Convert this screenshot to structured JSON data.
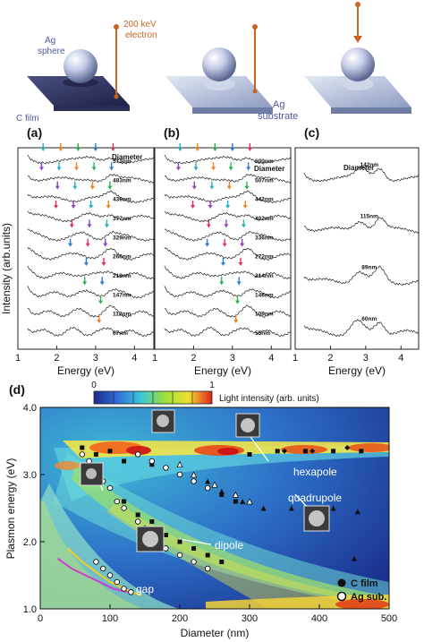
{
  "illustration": {
    "sphere_label": "Ag\nsphere",
    "sphere_label_1": "Ag",
    "sphere_label_2": "sphere",
    "electron_label_1": "200 keV",
    "electron_label_2": "electron",
    "film_label": "C film",
    "substrate_label_1": "Ag",
    "substrate_label_2": "substrate",
    "colors": {
      "electron": "#c8641e",
      "sphere": "#b8c4e8",
      "film": "#3a3f6e",
      "substrate": "#9aa8cc",
      "label": "#4a5aa0"
    }
  },
  "spectra": {
    "panel_labels": [
      "(a)",
      "(b)",
      "(c)"
    ],
    "ylabel": "Intensity (arb.units)",
    "xlabel": "Energy (eV)",
    "xticks": [
      "1",
      "2",
      "3",
      "4"
    ],
    "legend_title": "Diameter",
    "a_diameters": [
      "573nm",
      "483nm",
      "436nm",
      "377nm",
      "329nm",
      "266nm",
      "218nm",
      "147nm",
      "112nm",
      "67nm"
    ],
    "b_diameters": [
      "600nm",
      "507nm",
      "442nm",
      "402nm",
      "336nm",
      "272nm",
      "214nm",
      "146nm",
      "109nm",
      "55nm"
    ],
    "c_diameters": [
      "142nm",
      "115nm",
      "89nm",
      "60nm"
    ]
  },
  "map": {
    "panel_label": "(d)",
    "colorbar_min": "0",
    "colorbar_max": "1",
    "colorbar_label": "Light intensity (arb. units)",
    "ylabel": "Plasmon energy (eV)",
    "xlabel": "Diameter (nm)",
    "yticks": [
      "1.0",
      "2.0",
      "3.0",
      "4.0"
    ],
    "xticks": [
      "0",
      "100",
      "200",
      "300",
      "400",
      "500"
    ],
    "mode_labels": {
      "hexapole": "hexapole",
      "quadrupole": "quadrupole",
      "dipole": "dipole",
      "gap": "gap"
    },
    "legend": {
      "c_film": "C film",
      "ag_sub": "Ag sub."
    }
  },
  "chart_data": [
    {
      "type": "line",
      "panel": "(a)",
      "xlabel": "Energy (eV)",
      "ylabel": "Intensity (arb.units)",
      "xlim": [
        1,
        4.5
      ],
      "series_names": [
        "573nm",
        "483nm",
        "436nm",
        "377nm",
        "329nm",
        "266nm",
        "218nm",
        "147nm",
        "112nm",
        "67nm"
      ]
    },
    {
      "type": "line",
      "panel": "(b)",
      "xlabel": "Energy (eV)",
      "xlim": [
        1,
        4.5
      ],
      "series_names": [
        "600nm",
        "507nm",
        "442nm",
        "402nm",
        "336nm",
        "272nm",
        "214nm",
        "146nm",
        "109nm",
        "55nm"
      ]
    },
    {
      "type": "line",
      "panel": "(c)",
      "xlabel": "Energy (eV)",
      "xlim": [
        1,
        4.5
      ],
      "series_names": [
        "142nm",
        "115nm",
        "89nm",
        "60nm"
      ]
    },
    {
      "type": "heatmap",
      "panel": "(d)",
      "xlabel": "Diameter (nm)",
      "ylabel": "Plasmon energy (eV)",
      "xlim": [
        0,
        500
      ],
      "ylim": [
        1.0,
        4.0
      ],
      "colorbar": {
        "min": 0,
        "max": 1,
        "label": "Light intensity (arb. units)"
      },
      "scatter_c_film": [
        [
          60,
          3.4
        ],
        [
          80,
          3.3
        ],
        [
          100,
          3.35
        ],
        [
          120,
          3.2
        ],
        [
          140,
          3.3
        ],
        [
          160,
          3.15
        ],
        [
          180,
          3.1
        ],
        [
          200,
          3.0
        ],
        [
          220,
          2.9
        ],
        [
          240,
          2.8
        ],
        [
          260,
          2.7
        ],
        [
          280,
          2.6
        ],
        [
          120,
          2.6
        ],
        [
          140,
          2.4
        ],
        [
          160,
          2.3
        ],
        [
          180,
          2.1
        ],
        [
          200,
          2.0
        ],
        [
          220,
          1.9
        ],
        [
          240,
          1.8
        ],
        [
          260,
          1.7
        ],
        [
          300,
          3.3
        ],
        [
          340,
          3.35
        ],
        [
          380,
          3.35
        ],
        [
          420,
          3.35
        ],
        [
          460,
          3.35
        ]
      ],
      "scatter_ag_sub": [
        [
          60,
          3.3
        ],
        [
          70,
          3.2
        ],
        [
          80,
          3.0
        ],
        [
          90,
          2.9
        ],
        [
          100,
          2.8
        ],
        [
          110,
          2.6
        ],
        [
          120,
          2.5
        ],
        [
          140,
          2.3
        ],
        [
          150,
          2.2
        ],
        [
          160,
          2.1
        ],
        [
          170,
          2.0
        ],
        [
          180,
          1.9
        ],
        [
          200,
          1.8
        ],
        [
          220,
          1.7
        ],
        [
          240,
          1.6
        ],
        [
          80,
          1.7
        ],
        [
          90,
          1.6
        ],
        [
          100,
          1.5
        ],
        [
          110,
          1.4
        ],
        [
          120,
          1.3
        ],
        [
          130,
          1.25
        ],
        [
          140,
          3.3
        ],
        [
          160,
          3.2
        ],
        [
          180,
          3.1
        ],
        [
          200,
          3.0
        ],
        [
          220,
          2.9
        ],
        [
          240,
          2.8
        ]
      ],
      "gap_curve_yellow": [
        [
          40,
          1.9
        ],
        [
          60,
          1.7
        ],
        [
          80,
          1.55
        ],
        [
          100,
          1.4
        ],
        [
          120,
          1.3
        ],
        [
          145,
          1.2
        ]
      ],
      "gap_curve_magenta": [
        [
          25,
          1.75
        ],
        [
          45,
          1.6
        ],
        [
          65,
          1.5
        ],
        [
          85,
          1.4
        ],
        [
          105,
          1.3
        ],
        [
          125,
          1.25
        ]
      ]
    }
  ]
}
